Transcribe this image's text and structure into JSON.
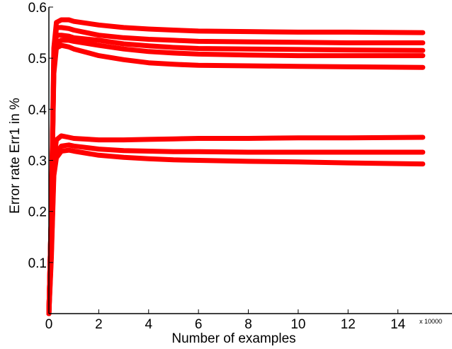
{
  "chart_data": {
    "type": "line",
    "title": "",
    "xlabel": "Number of examples",
    "ylabel": "Error rate Err1 in %",
    "x_multiplier_label": "x 10000",
    "xlim": [
      0,
      15.8
    ],
    "ylim": [
      0,
      0.6
    ],
    "xticks": [
      0,
      2,
      4,
      6,
      8,
      10,
      12,
      14
    ],
    "xtick_labels": [
      "0",
      "2",
      "4",
      "6",
      "8",
      "10",
      "12",
      "14"
    ],
    "yticks": [
      0.1,
      0.2,
      0.3,
      0.4,
      0.5,
      0.6
    ],
    "ytick_labels": [
      "0.1",
      "0.2",
      "0.3",
      "0.4",
      "0.5",
      "0.6"
    ],
    "grid": false,
    "legend": false,
    "series_color": "#ff0000",
    "series": [
      {
        "x": [
          0,
          0.1,
          0.2,
          0.3,
          0.5,
          0.8,
          1,
          2,
          3,
          4,
          5,
          6,
          8,
          10,
          12,
          15
        ],
        "y": [
          0,
          0.2,
          0.52,
          0.57,
          0.575,
          0.575,
          0.572,
          0.565,
          0.56,
          0.557,
          0.555,
          0.553,
          0.552,
          0.551,
          0.551,
          0.55
        ]
      },
      {
        "x": [
          0,
          0.1,
          0.2,
          0.3,
          0.5,
          0.8,
          1,
          2,
          3,
          4,
          5,
          6,
          8,
          10,
          12,
          15
        ],
        "y": [
          0,
          0.2,
          0.5,
          0.56,
          0.56,
          0.558,
          0.555,
          0.545,
          0.54,
          0.537,
          0.535,
          0.533,
          0.532,
          0.531,
          0.53,
          0.53
        ]
      },
      {
        "x": [
          0,
          0.1,
          0.2,
          0.3,
          0.5,
          0.8,
          1,
          2,
          3,
          4,
          5,
          6,
          8,
          10,
          12,
          15
        ],
        "y": [
          0,
          0.2,
          0.49,
          0.545,
          0.545,
          0.543,
          0.54,
          0.535,
          0.528,
          0.524,
          0.521,
          0.519,
          0.518,
          0.517,
          0.516,
          0.515
        ]
      },
      {
        "x": [
          0,
          0.1,
          0.2,
          0.3,
          0.5,
          0.8,
          1,
          2,
          3,
          4,
          5,
          6,
          8,
          10,
          12,
          15
        ],
        "y": [
          0,
          0.2,
          0.48,
          0.53,
          0.535,
          0.535,
          0.533,
          0.525,
          0.518,
          0.513,
          0.51,
          0.508,
          0.506,
          0.505,
          0.505,
          0.505
        ]
      },
      {
        "x": [
          0,
          0.1,
          0.2,
          0.3,
          0.5,
          0.8,
          1,
          2,
          3,
          4,
          5,
          6,
          8,
          10,
          12,
          15
        ],
        "y": [
          0,
          0.2,
          0.47,
          0.52,
          0.525,
          0.522,
          0.518,
          0.505,
          0.497,
          0.491,
          0.488,
          0.486,
          0.485,
          0.484,
          0.483,
          0.482
        ]
      },
      {
        "x": [
          0,
          0.1,
          0.2,
          0.3,
          0.5,
          0.8,
          1,
          2,
          3,
          4,
          5,
          6,
          8,
          10,
          12,
          15
        ],
        "y": [
          0,
          0.15,
          0.3,
          0.34,
          0.348,
          0.345,
          0.343,
          0.34,
          0.34,
          0.341,
          0.342,
          0.343,
          0.343,
          0.344,
          0.344,
          0.345
        ]
      },
      {
        "x": [
          0,
          0.1,
          0.2,
          0.3,
          0.5,
          0.8,
          1,
          2,
          3,
          4,
          5,
          6,
          8,
          10,
          12,
          15
        ],
        "y": [
          0,
          0.12,
          0.28,
          0.315,
          0.328,
          0.33,
          0.328,
          0.322,
          0.319,
          0.318,
          0.317,
          0.317,
          0.316,
          0.316,
          0.316,
          0.316
        ]
      },
      {
        "x": [
          0,
          0.1,
          0.2,
          0.3,
          0.5,
          0.8,
          1,
          2,
          3,
          4,
          5,
          6,
          8,
          10,
          12,
          15
        ],
        "y": [
          0,
          0.11,
          0.27,
          0.305,
          0.318,
          0.32,
          0.318,
          0.31,
          0.306,
          0.303,
          0.301,
          0.3,
          0.298,
          0.297,
          0.295,
          0.293
        ]
      }
    ]
  }
}
